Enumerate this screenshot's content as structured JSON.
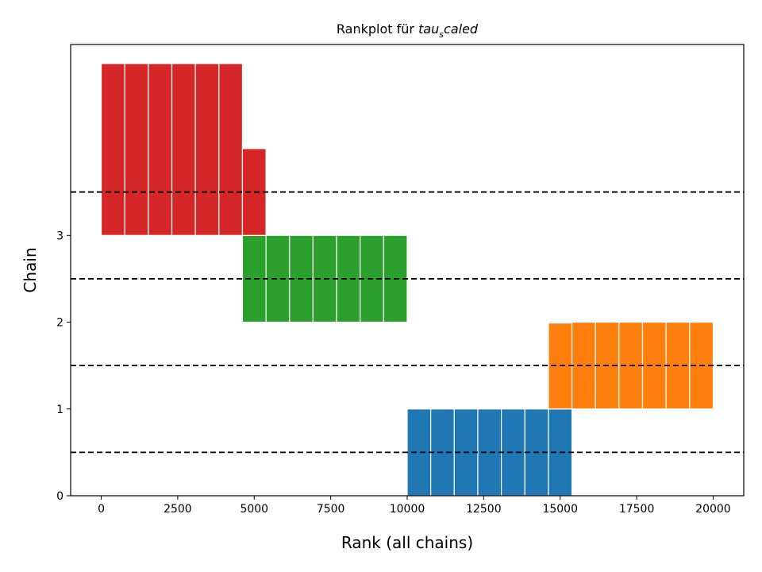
{
  "chart_data": {
    "type": "bar",
    "title_prefix": "Rankplot für ",
    "title_var": "tau",
    "title_sub": "s",
    "title_suffix": "caled",
    "xlabel": "Rank (all chains)",
    "ylabel": "Chain",
    "xlim": [
      -1000,
      21000
    ],
    "ylim": [
      0,
      5.2
    ],
    "xticks": [
      0,
      2500,
      5000,
      7500,
      10000,
      12500,
      15000,
      17500,
      20000
    ],
    "yticks": [
      0,
      1,
      2,
      3
    ],
    "grid": false,
    "reference_lines": [
      0.5,
      1.5,
      2.5,
      3.5
    ],
    "bin_edges": [
      0,
      769,
      1538,
      2308,
      3077,
      3846,
      4615,
      5385,
      6154,
      6923,
      7692,
      8462,
      9231,
      10000,
      10769,
      11538,
      12308,
      13077,
      13846,
      14615,
      15385,
      16154,
      16923,
      17692,
      18462,
      19231,
      20000
    ],
    "series": [
      {
        "chain": 0,
        "color": "#1f77b4",
        "bins": [
          [
            10000,
            15385
          ]
        ],
        "heights": [
          1.0,
          1.0,
          1.0,
          1.0,
          1.0,
          1.0,
          1.0
        ]
      },
      {
        "chain": 1,
        "color": "#ff7f0e",
        "bins": [
          [
            14615,
            20000
          ]
        ],
        "heights": [
          0.99,
          1.0,
          1.0,
          1.0,
          1.0,
          1.0,
          1.0
        ]
      },
      {
        "chain": 2,
        "color": "#2ca02c",
        "bins": [
          [
            4615,
            10000
          ]
        ],
        "heights": [
          1.0,
          1.0,
          1.0,
          1.0,
          1.0,
          1.0,
          1.0
        ]
      },
      {
        "chain": 3,
        "color": "#d62728",
        "bins": [
          [
            0,
            5385
          ]
        ],
        "heights": [
          1.98,
          1.98,
          1.98,
          1.98,
          1.98,
          1.98,
          1.0
        ]
      }
    ]
  }
}
